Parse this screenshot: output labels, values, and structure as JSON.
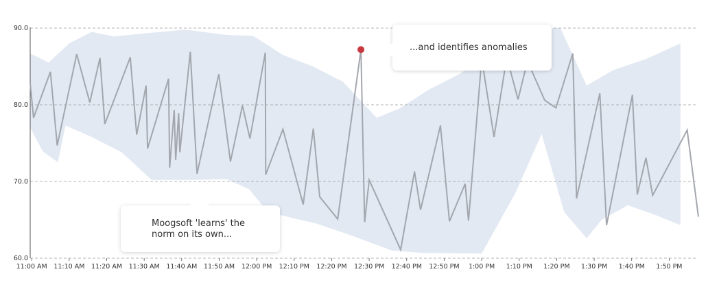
{
  "chart_data": {
    "type": "line",
    "ylim": [
      60,
      90
    ],
    "yticks": [
      "60.0",
      "70.0",
      "80.0",
      "90.0"
    ],
    "xtick_labels": [
      "11:00 AM",
      "11:10 AM",
      "11:20 AM",
      "11:30 AM",
      "11:40 AM",
      "11:50 AM",
      "12:00 PM",
      "12:10 PM",
      "12:20 PM",
      "12:30 PM",
      "12:40 PM",
      "12:50 PM",
      "1:00 PM",
      "1:10 PM",
      "1:20 PM",
      "1:30 PM",
      "1:40 PM",
      "1:50 PM"
    ],
    "xtick_minutes": [
      660,
      670,
      680,
      690,
      700,
      710,
      720,
      730,
      740,
      750,
      760,
      770,
      780,
      790,
      800,
      810,
      820,
      830
    ],
    "colors": {
      "line": "#a3a6ad",
      "band": "#e2e9f3",
      "anomaly": "#c9383e",
      "grid": "#9a9a9a"
    },
    "band_upper": [
      {
        "x": 659.6,
        "y": 86.7
      },
      {
        "x": 664.5,
        "y": 85.5
      },
      {
        "x": 670,
        "y": 88
      },
      {
        "x": 676,
        "y": 89.5
      },
      {
        "x": 682,
        "y": 88.9
      },
      {
        "x": 690,
        "y": 89.3
      },
      {
        "x": 701,
        "y": 89.8
      },
      {
        "x": 712,
        "y": 89.1
      },
      {
        "x": 719,
        "y": 89
      },
      {
        "x": 727,
        "y": 86.5
      },
      {
        "x": 735,
        "y": 85
      },
      {
        "x": 743,
        "y": 83
      },
      {
        "x": 752,
        "y": 78.3
      },
      {
        "x": 758,
        "y": 79.5
      },
      {
        "x": 766,
        "y": 82
      },
      {
        "x": 774,
        "y": 84
      },
      {
        "x": 782,
        "y": 86.5
      },
      {
        "x": 786,
        "y": 88.5
      },
      {
        "x": 796,
        "y": 90
      },
      {
        "x": 801,
        "y": 90
      },
      {
        "x": 808,
        "y": 82.5
      },
      {
        "x": 815,
        "y": 84.5
      },
      {
        "x": 824,
        "y": 86
      },
      {
        "x": 833,
        "y": 88
      }
    ],
    "band_lower": [
      {
        "x": 833,
        "y": 64.3
      },
      {
        "x": 826,
        "y": 65.7
      },
      {
        "x": 819,
        "y": 66.9
      },
      {
        "x": 812,
        "y": 65
      },
      {
        "x": 808,
        "y": 62.6
      },
      {
        "x": 802,
        "y": 66
      },
      {
        "x": 796,
        "y": 76.2
      },
      {
        "x": 789,
        "y": 68.5
      },
      {
        "x": 780,
        "y": 60.6
      },
      {
        "x": 764,
        "y": 60.7
      },
      {
        "x": 756,
        "y": 61
      },
      {
        "x": 745,
        "y": 63
      },
      {
        "x": 736,
        "y": 64.5
      },
      {
        "x": 723,
        "y": 66
      },
      {
        "x": 718,
        "y": 69
      },
      {
        "x": 712,
        "y": 70.3
      },
      {
        "x": 702,
        "y": 70.2
      },
      {
        "x": 692,
        "y": 70.2
      },
      {
        "x": 684,
        "y": 73.8
      },
      {
        "x": 676,
        "y": 75.8
      },
      {
        "x": 669,
        "y": 77.3
      },
      {
        "x": 667,
        "y": 72.5
      },
      {
        "x": 663,
        "y": 73.9
      },
      {
        "x": 659.6,
        "y": 77
      }
    ],
    "series": [
      {
        "values": [
          {
            "x": 659.6,
            "y": 82.8
          },
          {
            "x": 660.5,
            "y": 78.3
          },
          {
            "x": 665,
            "y": 84.3
          },
          {
            "x": 666.8,
            "y": 74.7
          },
          {
            "x": 672,
            "y": 86.6
          },
          {
            "x": 675.5,
            "y": 80.3
          },
          {
            "x": 678.2,
            "y": 86.1
          },
          {
            "x": 679.5,
            "y": 77.5
          },
          {
            "x": 686.3,
            "y": 86.2
          },
          {
            "x": 688,
            "y": 76.1
          },
          {
            "x": 690.5,
            "y": 82.5
          },
          {
            "x": 690.9,
            "y": 74.3
          },
          {
            "x": 696.5,
            "y": 83.4
          },
          {
            "x": 696.8,
            "y": 71.8
          },
          {
            "x": 698,
            "y": 79.3
          },
          {
            "x": 698.4,
            "y": 72.8
          },
          {
            "x": 699.2,
            "y": 78.9
          },
          {
            "x": 699.5,
            "y": 73.8
          },
          {
            "x": 702.3,
            "y": 86.9
          },
          {
            "x": 704.1,
            "y": 71
          },
          {
            "x": 709.9,
            "y": 84
          },
          {
            "x": 713,
            "y": 72.6
          },
          {
            "x": 716.2,
            "y": 79.9
          },
          {
            "x": 718.2,
            "y": 75.6
          },
          {
            "x": 722.3,
            "y": 86.8
          },
          {
            "x": 722.4,
            "y": 70.9
          },
          {
            "x": 727,
            "y": 76.8
          },
          {
            "x": 732.4,
            "y": 67
          },
          {
            "x": 735.1,
            "y": 76.9
          },
          {
            "x": 736.8,
            "y": 68
          },
          {
            "x": 741.6,
            "y": 65.1
          },
          {
            "x": 747.8,
            "y": 87.2
          },
          {
            "x": 748.8,
            "y": 64.7
          },
          {
            "x": 750,
            "y": 70.2
          },
          {
            "x": 758.4,
            "y": 61.1
          },
          {
            "x": 762.1,
            "y": 71.3
          },
          {
            "x": 763.7,
            "y": 66.3
          },
          {
            "x": 769,
            "y": 77.3
          },
          {
            "x": 771.4,
            "y": 64.8
          },
          {
            "x": 775.6,
            "y": 69.7
          },
          {
            "x": 776.5,
            "y": 64.9
          },
          {
            "x": 780,
            "y": 86
          },
          {
            "x": 783.3,
            "y": 75.8
          },
          {
            "x": 786.7,
            "y": 86.2
          },
          {
            "x": 789.7,
            "y": 80.7
          },
          {
            "x": 792.2,
            "y": 85.7
          },
          {
            "x": 796.8,
            "y": 80.6
          },
          {
            "x": 799.8,
            "y": 79.6
          },
          {
            "x": 804.3,
            "y": 86.7
          },
          {
            "x": 805.3,
            "y": 67.8
          },
          {
            "x": 811.5,
            "y": 81.5
          },
          {
            "x": 813.3,
            "y": 64.3
          },
          {
            "x": 820.2,
            "y": 81.3
          },
          {
            "x": 821.5,
            "y": 68.3
          },
          {
            "x": 823.8,
            "y": 73.1
          },
          {
            "x": 825.6,
            "y": 68.2
          },
          {
            "x": 834.8,
            "y": 76.7
          },
          {
            "x": 837.8,
            "y": 65.4
          }
        ]
      }
    ],
    "anomaly": {
      "x": 747.8,
      "y": 87.2
    },
    "annotations": {
      "anomaly": "...and identifies anomalies",
      "learn_line1": "Moogsoft 'learns' the",
      "learn_line2": "norm on its own..."
    }
  }
}
